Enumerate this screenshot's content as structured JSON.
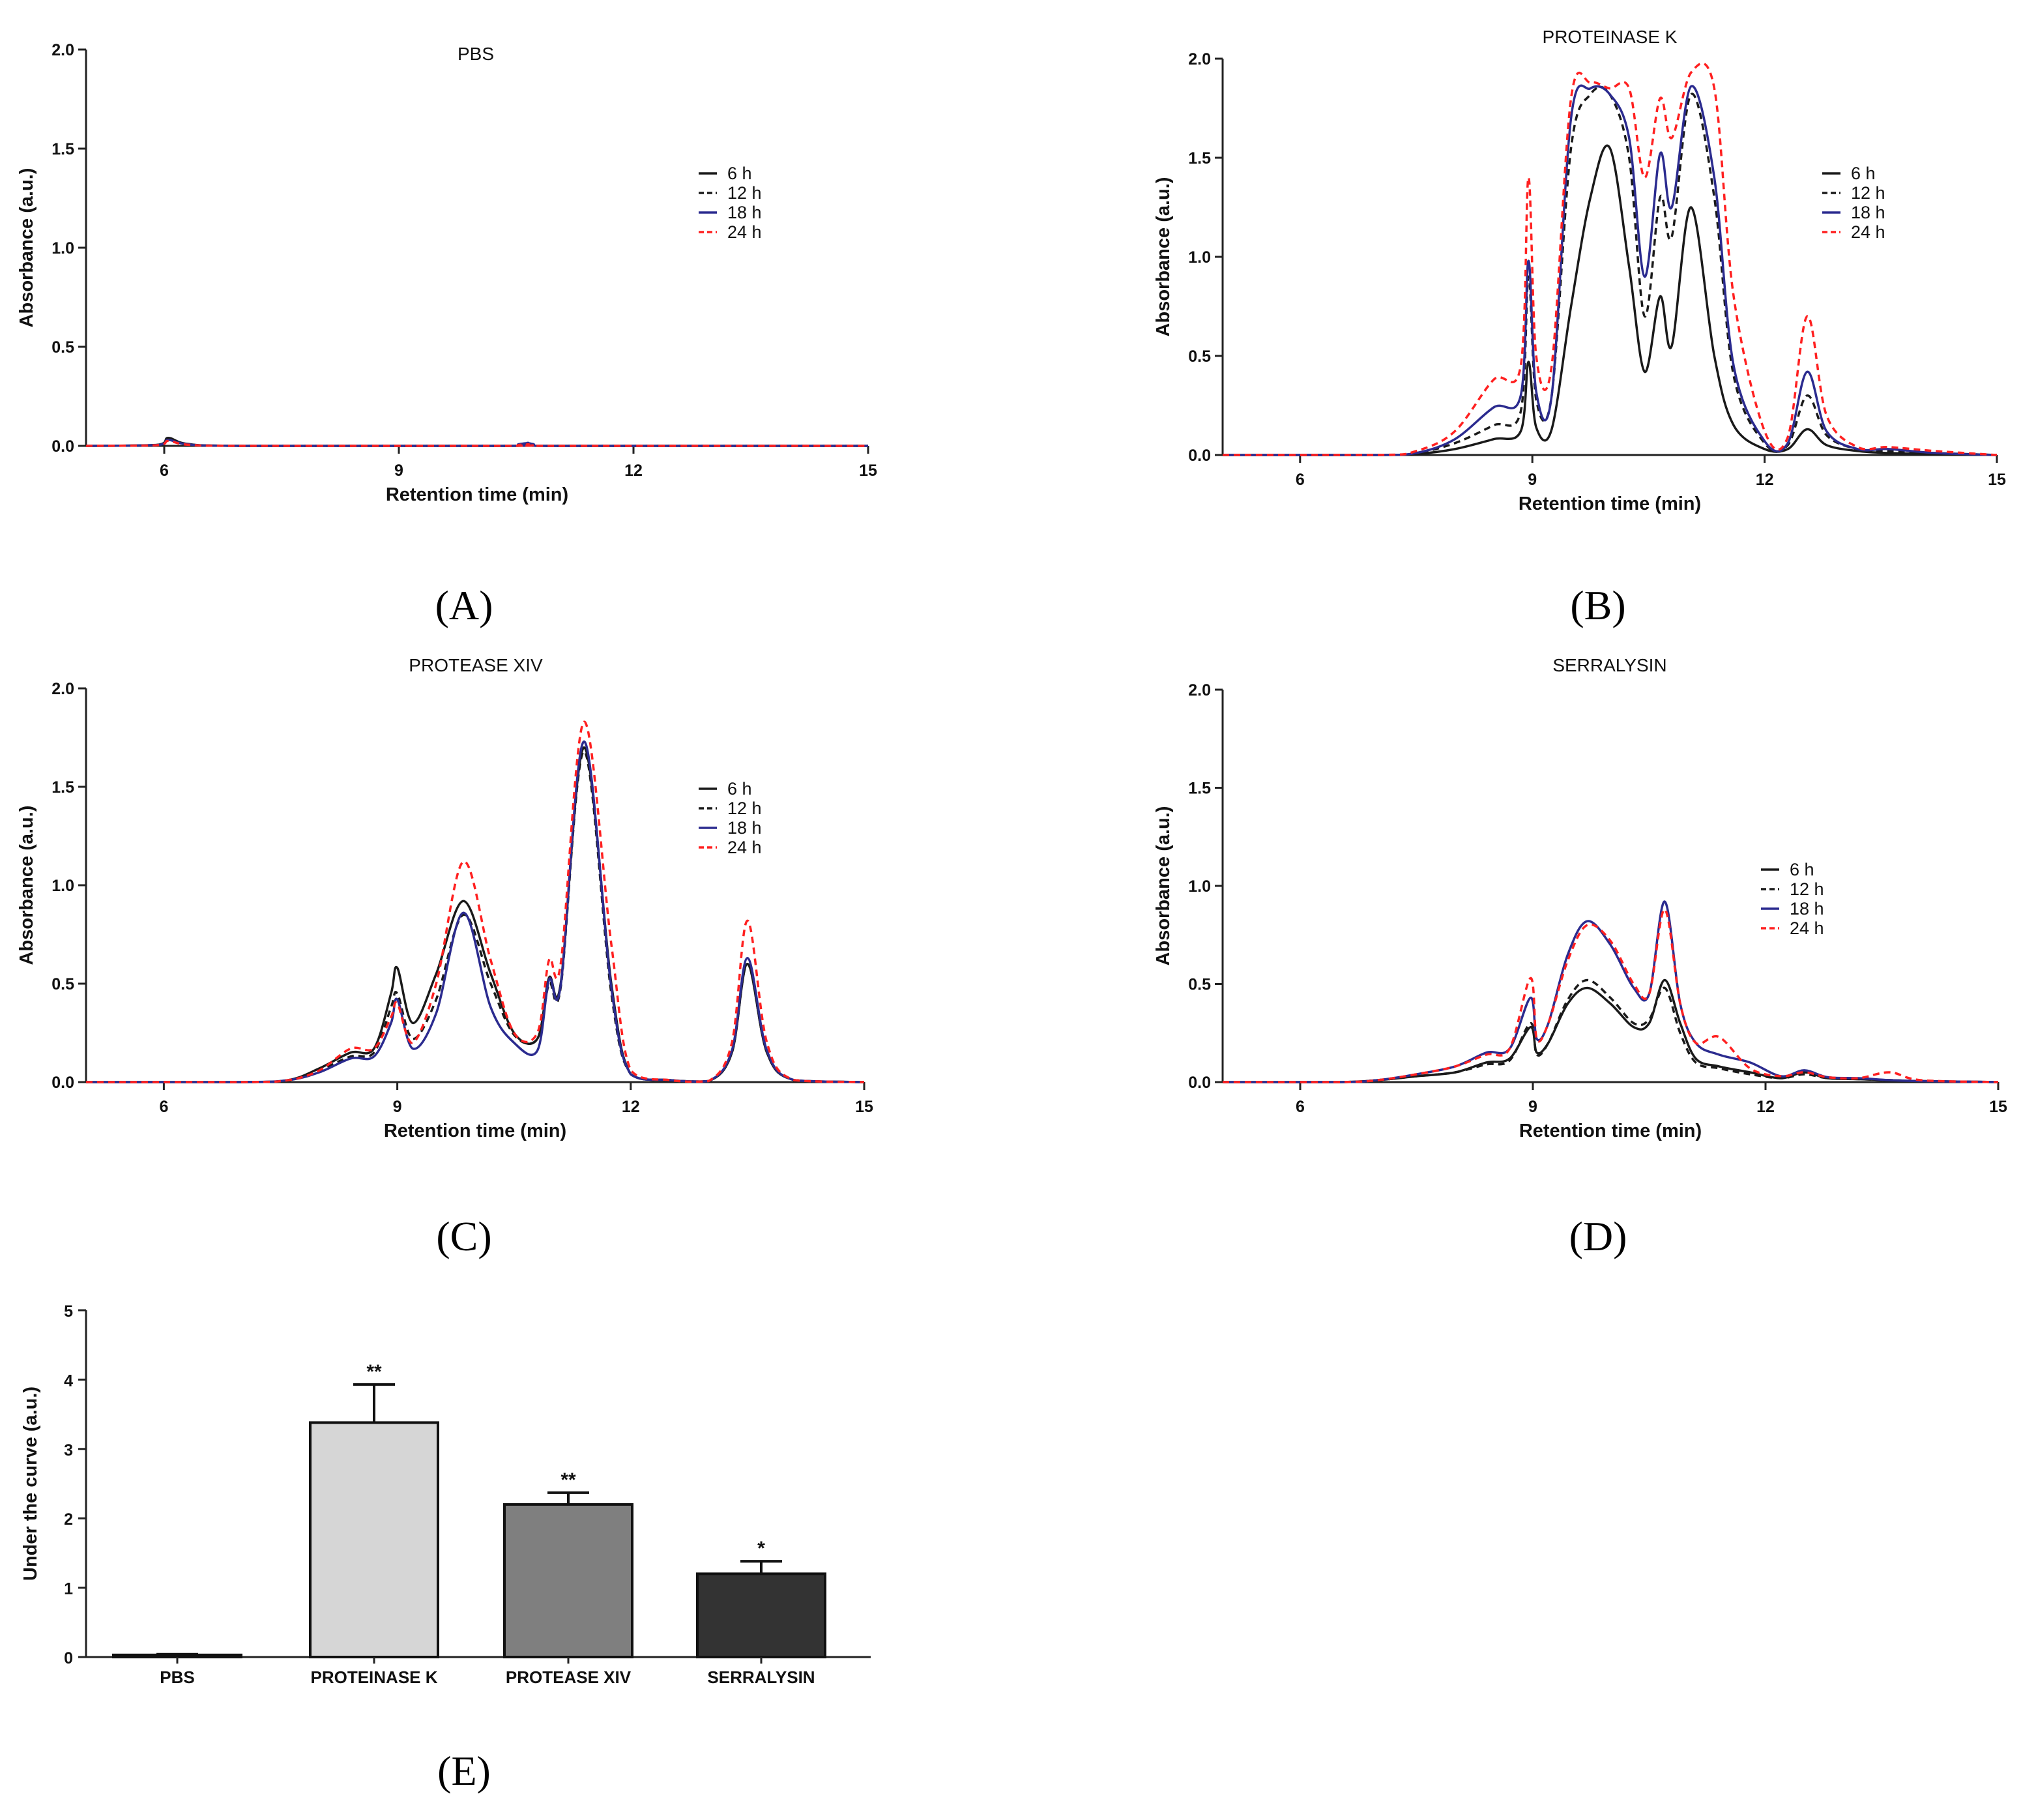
{
  "figure": {
    "panel_labels": [
      "(A)",
      "(B)",
      "(C)",
      "(D)",
      "(E)"
    ]
  },
  "series_styles": [
    {
      "name": "6 h",
      "color": "#1a1a1a",
      "dash": "solid"
    },
    {
      "name": "12 h",
      "color": "#1a1a1a",
      "dash": "dashed"
    },
    {
      "name": "18 h",
      "color": "#2b2b8f",
      "dash": "solid"
    },
    {
      "name": "24 h",
      "color": "#ff2020",
      "dash": "dashed"
    }
  ],
  "chart_data": [
    {
      "panel": "A",
      "type": "line",
      "title": "PBS",
      "xlabel": "Retention time (min)",
      "ylabel": "Absorbance (a.u.)",
      "xlim": [
        5,
        15
      ],
      "ylim": [
        0,
        2
      ],
      "xticks": [
        "6",
        "9",
        "12",
        "15"
      ],
      "yticks": [
        "0.0",
        "0.5",
        "1.0",
        "1.5",
        "2.0"
      ],
      "legend": [
        "6 h",
        "12 h",
        "18 h",
        "24 h"
      ],
      "series": [
        {
          "name": "6 h",
          "x": [
            5.0,
            5.9,
            6.05,
            6.3,
            7.0,
            10.4,
            10.65,
            10.9,
            15.0
          ],
          "values": [
            0,
            0.005,
            0.04,
            0.01,
            0,
            0,
            0.012,
            0,
            0
          ]
        },
        {
          "name": "12 h",
          "x": [
            5.0,
            5.9,
            6.05,
            6.3,
            7.0,
            10.4,
            10.65,
            10.9,
            15.0
          ],
          "values": [
            0,
            0.004,
            0.035,
            0.008,
            0,
            0,
            0.01,
            0,
            0
          ]
        },
        {
          "name": "18 h",
          "x": [
            5.0,
            5.9,
            6.05,
            6.3,
            7.0,
            10.4,
            10.65,
            10.9,
            15.0
          ],
          "values": [
            0,
            0.004,
            0.03,
            0.008,
            0,
            0,
            0.015,
            0,
            0
          ]
        },
        {
          "name": "24 h",
          "x": [
            5.0,
            5.9,
            6.05,
            6.3,
            7.0,
            10.4,
            10.65,
            10.9,
            15.0
          ],
          "values": [
            0,
            0.003,
            0.025,
            0.006,
            0,
            0,
            0.008,
            0,
            0
          ]
        }
      ]
    },
    {
      "panel": "B",
      "type": "line",
      "title": "PROTEINASE K",
      "xlabel": "Retention time (min)",
      "ylabel": "Absorbance (a.u.)",
      "xlim": [
        5,
        15
      ],
      "ylim": [
        0,
        2
      ],
      "xticks": [
        "6",
        "9",
        "12",
        "15"
      ],
      "yticks": [
        "0.0",
        "0.5",
        "1.0",
        "1.5",
        "2.0"
      ],
      "legend": [
        "6 h",
        "12 h",
        "18 h",
        "24 h"
      ],
      "series": [
        {
          "name": "6 h",
          "x": [
            5.0,
            7.0,
            7.5,
            8.0,
            8.5,
            8.85,
            8.95,
            9.05,
            9.25,
            9.5,
            9.75,
            10.0,
            10.25,
            10.45,
            10.65,
            10.8,
            11.05,
            11.35,
            11.6,
            12.0,
            12.3,
            12.55,
            12.8,
            13.2,
            13.6,
            14.2,
            15.0
          ],
          "values": [
            0,
            0,
            0.005,
            0.03,
            0.08,
            0.12,
            0.47,
            0.14,
            0.13,
            0.75,
            1.3,
            1.55,
            0.95,
            0.42,
            0.8,
            0.55,
            1.25,
            0.5,
            0.15,
            0.03,
            0.03,
            0.13,
            0.05,
            0.02,
            0.01,
            0.005,
            0
          ]
        },
        {
          "name": "12 h",
          "x": [
            5.0,
            7.0,
            7.5,
            8.0,
            8.5,
            8.85,
            8.95,
            9.05,
            9.25,
            9.5,
            9.75,
            10.0,
            10.25,
            10.45,
            10.65,
            10.8,
            11.05,
            11.35,
            11.6,
            12.0,
            12.3,
            12.55,
            12.8,
            13.2,
            13.6,
            14.2,
            15.0
          ],
          "values": [
            0,
            0,
            0.01,
            0.06,
            0.15,
            0.22,
            0.9,
            0.28,
            0.3,
            1.55,
            1.82,
            1.82,
            1.5,
            0.7,
            1.3,
            1.1,
            1.82,
            1.3,
            0.4,
            0.06,
            0.05,
            0.3,
            0.1,
            0.03,
            0.02,
            0.01,
            0
          ]
        },
        {
          "name": "18 h",
          "x": [
            5.0,
            7.0,
            7.5,
            8.0,
            8.5,
            8.85,
            8.95,
            9.05,
            9.25,
            9.5,
            9.75,
            10.0,
            10.25,
            10.45,
            10.65,
            10.8,
            11.05,
            11.35,
            11.6,
            12.0,
            12.3,
            12.55,
            12.8,
            13.2,
            13.6,
            14.2,
            15.0
          ],
          "values": [
            0,
            0,
            0.01,
            0.08,
            0.24,
            0.3,
            0.98,
            0.32,
            0.3,
            1.7,
            1.85,
            1.82,
            1.6,
            0.9,
            1.52,
            1.25,
            1.86,
            1.4,
            0.45,
            0.07,
            0.06,
            0.42,
            0.12,
            0.03,
            0.03,
            0.01,
            0
          ]
        },
        {
          "name": "24 h",
          "x": [
            5.0,
            7.0,
            7.5,
            8.0,
            8.5,
            8.85,
            8.95,
            9.05,
            9.25,
            9.5,
            9.75,
            10.0,
            10.25,
            10.45,
            10.65,
            10.8,
            11.05,
            11.35,
            11.6,
            12.0,
            12.3,
            12.55,
            12.8,
            13.2,
            13.6,
            14.2,
            15.0
          ],
          "values": [
            0,
            0,
            0.02,
            0.12,
            0.38,
            0.45,
            1.4,
            0.5,
            0.45,
            1.8,
            1.88,
            1.85,
            1.85,
            1.4,
            1.8,
            1.6,
            1.93,
            1.85,
            0.8,
            0.12,
            0.09,
            0.7,
            0.2,
            0.04,
            0.04,
            0.02,
            0
          ]
        }
      ]
    },
    {
      "panel": "C",
      "type": "line",
      "title": "PROTEASE XIV",
      "xlabel": "Retention time (min)",
      "ylabel": "Absorbance (a.u.)",
      "xlim": [
        5,
        15
      ],
      "ylim": [
        0,
        2
      ],
      "xticks": [
        "6",
        "9",
        "12",
        "15"
      ],
      "yticks": [
        "0.0",
        "0.5",
        "1.0",
        "1.5",
        "2.0"
      ],
      "legend": [
        "6 h",
        "12 h",
        "18 h",
        "24 h"
      ],
      "series": [
        {
          "name": "6 h",
          "x": [
            5.0,
            7.0,
            7.6,
            8.0,
            8.4,
            8.7,
            8.92,
            9.0,
            9.2,
            9.5,
            9.85,
            10.2,
            10.5,
            10.8,
            10.95,
            11.1,
            11.4,
            11.75,
            12.0,
            12.5,
            13.0,
            13.3,
            13.5,
            13.75,
            14.1,
            15.0
          ],
          "values": [
            0,
            0,
            0.01,
            0.07,
            0.15,
            0.17,
            0.45,
            0.58,
            0.3,
            0.55,
            0.92,
            0.55,
            0.25,
            0.22,
            0.53,
            0.5,
            1.7,
            0.5,
            0.04,
            0.01,
            0.005,
            0.15,
            0.6,
            0.15,
            0.01,
            0
          ]
        },
        {
          "name": "12 h",
          "x": [
            5.0,
            7.0,
            7.6,
            8.0,
            8.4,
            8.7,
            8.92,
            9.0,
            9.2,
            9.5,
            9.85,
            10.2,
            10.5,
            10.8,
            10.95,
            11.1,
            11.4,
            11.75,
            12.0,
            12.5,
            13.0,
            13.3,
            13.5,
            13.75,
            14.1,
            15.0
          ],
          "values": [
            0,
            0,
            0.01,
            0.06,
            0.13,
            0.15,
            0.38,
            0.45,
            0.22,
            0.42,
            0.85,
            0.5,
            0.24,
            0.22,
            0.5,
            0.48,
            1.68,
            0.45,
            0.04,
            0.01,
            0.005,
            0.15,
            0.6,
            0.15,
            0.01,
            0
          ]
        },
        {
          "name": "18 h",
          "x": [
            5.0,
            7.0,
            7.6,
            8.0,
            8.4,
            8.7,
            8.92,
            9.0,
            9.2,
            9.5,
            9.85,
            10.2,
            10.5,
            10.8,
            10.95,
            11.1,
            11.4,
            11.75,
            12.0,
            12.5,
            13.0,
            13.3,
            13.5,
            13.75,
            14.1,
            15.0
          ],
          "values": [
            0,
            0,
            0.01,
            0.05,
            0.12,
            0.13,
            0.3,
            0.42,
            0.17,
            0.35,
            0.86,
            0.38,
            0.2,
            0.16,
            0.52,
            0.49,
            1.73,
            0.48,
            0.04,
            0.01,
            0.005,
            0.16,
            0.63,
            0.16,
            0.01,
            0
          ]
        },
        {
          "name": "24 h",
          "x": [
            5.0,
            7.0,
            7.6,
            8.0,
            8.4,
            8.7,
            8.92,
            9.0,
            9.2,
            9.5,
            9.85,
            10.2,
            10.5,
            10.8,
            10.95,
            11.1,
            11.4,
            11.75,
            12.0,
            12.5,
            13.0,
            13.3,
            13.5,
            13.75,
            14.1,
            15.0
          ],
          "values": [
            0,
            0,
            0.01,
            0.06,
            0.17,
            0.17,
            0.33,
            0.4,
            0.2,
            0.5,
            1.12,
            0.62,
            0.25,
            0.25,
            0.62,
            0.6,
            1.83,
            0.7,
            0.06,
            0.01,
            0.005,
            0.2,
            0.82,
            0.2,
            0.01,
            0
          ]
        }
      ]
    },
    {
      "panel": "D",
      "type": "line",
      "title": "SERRALYSIN",
      "xlabel": "Retention time (min)",
      "ylabel": "Absorbance (a.u.)",
      "xlim": [
        5,
        15
      ],
      "ylim": [
        0,
        2
      ],
      "xticks": [
        "6",
        "9",
        "12",
        "15"
      ],
      "yticks": [
        "0.0",
        "0.5",
        "1.0",
        "1.5",
        "2.0"
      ],
      "legend": [
        "6 h",
        "12 h",
        "18 h",
        "24 h"
      ],
      "series": [
        {
          "name": "6 h",
          "x": [
            5.0,
            6.5,
            7.0,
            7.5,
            8.0,
            8.4,
            8.7,
            8.97,
            9.05,
            9.2,
            9.45,
            9.7,
            10.0,
            10.3,
            10.5,
            10.7,
            10.9,
            11.1,
            11.4,
            11.8,
            12.2,
            12.5,
            12.8,
            13.2,
            13.6,
            14.0,
            15.0
          ],
          "values": [
            0,
            0,
            0.01,
            0.03,
            0.05,
            0.1,
            0.12,
            0.28,
            0.15,
            0.2,
            0.4,
            0.48,
            0.4,
            0.28,
            0.3,
            0.52,
            0.3,
            0.12,
            0.08,
            0.05,
            0.02,
            0.05,
            0.02,
            0.015,
            0.01,
            0.005,
            0
          ]
        },
        {
          "name": "12 h",
          "x": [
            5.0,
            6.5,
            7.0,
            7.5,
            8.0,
            8.4,
            8.7,
            8.97,
            9.05,
            9.2,
            9.45,
            9.7,
            10.0,
            10.3,
            10.5,
            10.7,
            10.9,
            11.1,
            11.4,
            11.8,
            12.2,
            12.5,
            12.8,
            13.2,
            13.6,
            14.0,
            15.0
          ],
          "values": [
            0,
            0,
            0.01,
            0.03,
            0.05,
            0.09,
            0.11,
            0.3,
            0.14,
            0.2,
            0.42,
            0.52,
            0.43,
            0.3,
            0.32,
            0.48,
            0.25,
            0.1,
            0.07,
            0.04,
            0.02,
            0.04,
            0.02,
            0.015,
            0.01,
            0.005,
            0
          ]
        },
        {
          "name": "18 h",
          "x": [
            5.0,
            6.5,
            7.0,
            7.5,
            8.0,
            8.4,
            8.7,
            8.97,
            9.05,
            9.2,
            9.45,
            9.7,
            10.0,
            10.3,
            10.5,
            10.7,
            10.9,
            11.1,
            11.4,
            11.8,
            12.2,
            12.5,
            12.8,
            13.2,
            13.6,
            14.0,
            15.0
          ],
          "values": [
            0,
            0,
            0.01,
            0.04,
            0.08,
            0.15,
            0.17,
            0.43,
            0.22,
            0.3,
            0.65,
            0.82,
            0.7,
            0.48,
            0.45,
            0.92,
            0.4,
            0.2,
            0.14,
            0.1,
            0.03,
            0.06,
            0.025,
            0.02,
            0.01,
            0.005,
            0
          ]
        },
        {
          "name": "24 h",
          "x": [
            5.0,
            6.5,
            7.0,
            7.5,
            8.0,
            8.4,
            8.7,
            8.97,
            9.05,
            9.2,
            9.45,
            9.7,
            10.0,
            10.3,
            10.5,
            10.7,
            10.9,
            11.1,
            11.4,
            11.8,
            12.2,
            12.5,
            12.8,
            13.2,
            13.6,
            14.0,
            15.0
          ],
          "values": [
            0,
            0,
            0.01,
            0.04,
            0.08,
            0.14,
            0.17,
            0.53,
            0.22,
            0.3,
            0.62,
            0.8,
            0.72,
            0.5,
            0.45,
            0.88,
            0.4,
            0.2,
            0.23,
            0.07,
            0.03,
            0.05,
            0.025,
            0.02,
            0.05,
            0.01,
            0
          ]
        }
      ]
    },
    {
      "panel": "E",
      "type": "bar",
      "title": "",
      "xlabel": "",
      "ylabel": "Under the curve (a.u.)",
      "ylim": [
        0,
        5
      ],
      "yticks": [
        "0",
        "1",
        "2",
        "3",
        "4",
        "5"
      ],
      "categories": [
        "PBS",
        "PROTEINASE K",
        "PROTEASE XIV",
        "SERRALYSIN"
      ],
      "values": [
        0.03,
        3.38,
        2.2,
        1.2
      ],
      "errors": [
        0.01,
        0.55,
        0.17,
        0.18
      ],
      "significance": [
        "",
        "**",
        "**",
        "*"
      ],
      "bar_colors": [
        "#d6d6d6",
        "#d6d6d6",
        "#7f7f7f",
        "#333333"
      ]
    }
  ]
}
